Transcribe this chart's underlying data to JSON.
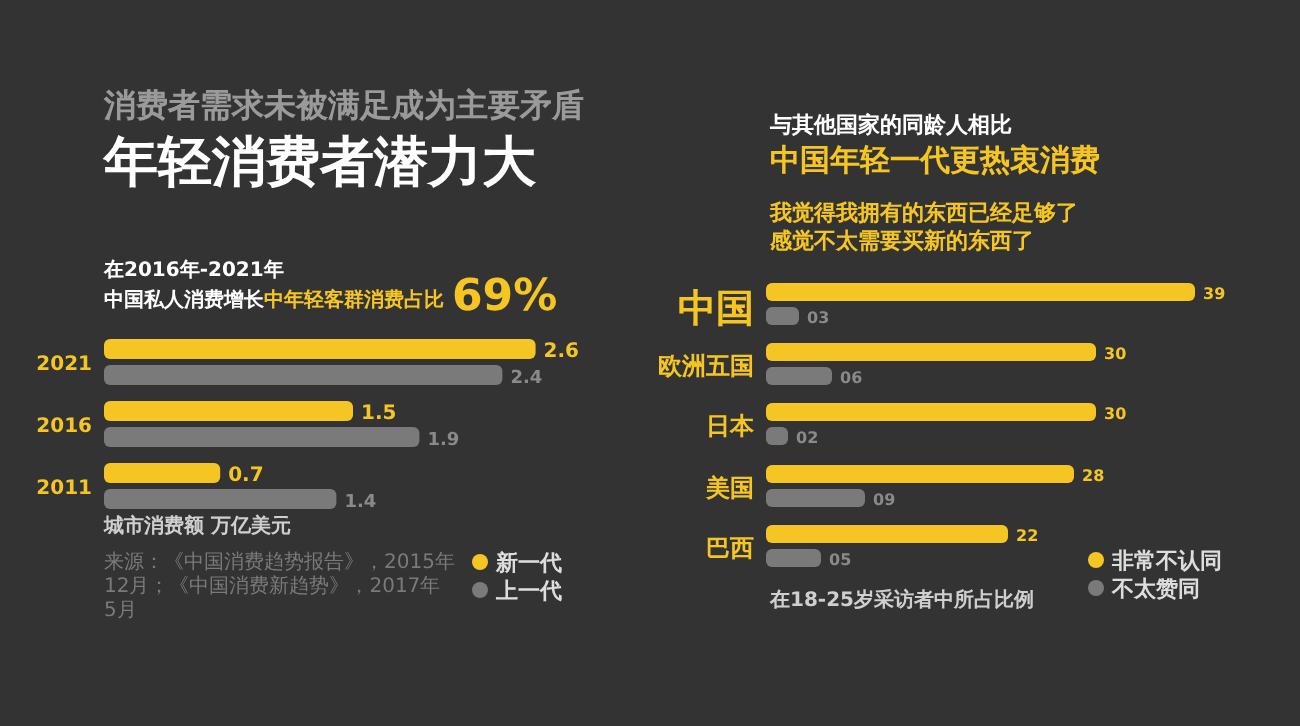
{
  "chart_data": [
    {
      "type": "bar",
      "orientation": "horizontal",
      "title": "消费者需求未被满足成为主要矛盾",
      "subtitle": "年轻消费者潜力大",
      "xlabel": "城市消费额 万亿美元",
      "categories": [
        "2021",
        "2016",
        "2011"
      ],
      "series": [
        {
          "name": "新一代",
          "color": "#f5c623",
          "values": [
            2.6,
            1.5,
            0.7
          ]
        },
        {
          "name": "上一代",
          "color": "#7a7a7a",
          "values": [
            2.4,
            1.9,
            1.4
          ]
        }
      ],
      "data_labels": true,
      "legend": "bottom right",
      "annotations": [
        "在2016年-2021年",
        "中国私人消费增长",
        "中年轻客群消费占比",
        "69%",
        "来源：《中国消费趋势报告》，2015年12月；《中国消费新趋势》，2017年5月"
      ]
    },
    {
      "type": "bar",
      "orientation": "horizontal",
      "title": "与其他国家的同龄人相比",
      "subtitle": "中国年轻一代更热衷消费",
      "xlabel": "在18-25岁采访者中所占比例",
      "categories": [
        "中国",
        "欧洲五国",
        "日本",
        "美国",
        "巴西"
      ],
      "series": [
        {
          "name": "非常不认同",
          "color": "#f5c623",
          "values": [
            39,
            30,
            30,
            28,
            22
          ],
          "value_labels": [
            "39",
            "30",
            "30",
            "28",
            "22"
          ]
        },
        {
          "name": "不太赞同",
          "color": "#7a7a7a",
          "values": [
            3,
            6,
            2,
            9,
            5
          ],
          "value_labels": [
            "03",
            "06",
            "02",
            "09",
            "05"
          ]
        }
      ],
      "legend": "bottom right",
      "annotations": [
        "我觉得我拥有的东西已经足够了",
        "感觉不太需要买新的东西了"
      ]
    }
  ]
}
